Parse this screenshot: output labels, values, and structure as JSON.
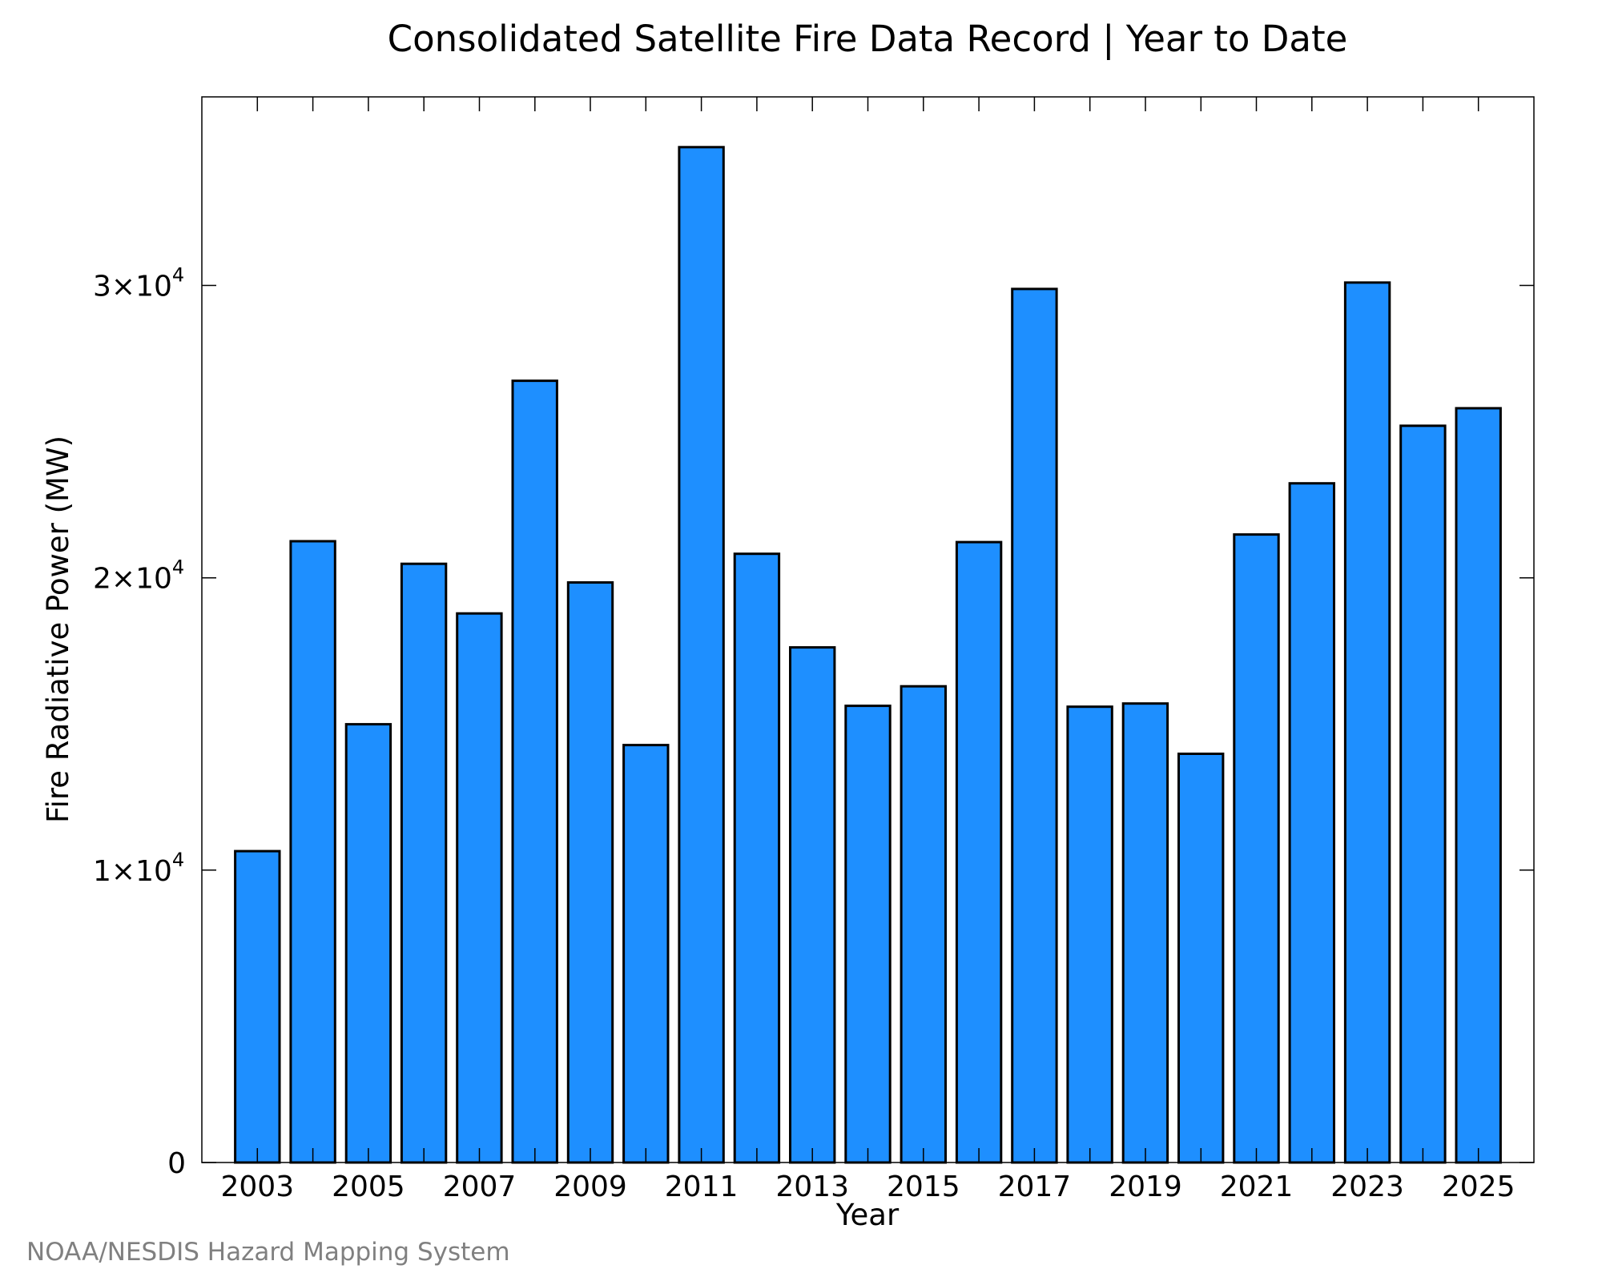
{
  "chart_data": {
    "type": "bar",
    "title": "Consolidated Satellite Fire Data Record | Year to Date",
    "xlabel": "Year",
    "ylabel": "Fire Radiative Power (MW)",
    "categories": [
      2003,
      2004,
      2005,
      2006,
      2007,
      2008,
      2009,
      2010,
      2011,
      2012,
      2013,
      2014,
      2015,
      2016,
      2017,
      2018,
      2019,
      2020,
      2021,
      2022,
      2023,
      2024,
      2025
    ],
    "values": [
      10650,
      21250,
      14990,
      20480,
      18780,
      26740,
      19840,
      14280,
      34730,
      20820,
      17620,
      15620,
      16290,
      21220,
      29880,
      15590,
      15700,
      13980,
      21480,
      23230,
      30100,
      25200,
      25800
    ],
    "ylim": [
      0,
      36450
    ],
    "xlim": [
      2002,
      2026
    ],
    "y_ticks": [
      {
        "value": 0,
        "label": "0"
      },
      {
        "value": 10000,
        "mant": "1",
        "exp": "4"
      },
      {
        "value": 20000,
        "mant": "2",
        "exp": "4"
      },
      {
        "value": 30000,
        "mant": "3",
        "exp": "4"
      }
    ],
    "x_tick_labels": [
      "2003",
      "2005",
      "2007",
      "2009",
      "2011",
      "2013",
      "2015",
      "2017",
      "2019",
      "2021",
      "2023",
      "2025"
    ],
    "x_ticks_marks": [
      2003,
      2004,
      2005,
      2006,
      2007,
      2008,
      2009,
      2010,
      2011,
      2012,
      2013,
      2014,
      2015,
      2016,
      2017,
      2018,
      2019,
      2020,
      2021,
      2022,
      2023,
      2024,
      2025
    ],
    "bar_color": "#1e8fff",
    "bar_edge_color": "#000000",
    "grid": false,
    "legend": "none"
  },
  "credit": "NOAA/NESDIS Hazard Mapping System"
}
